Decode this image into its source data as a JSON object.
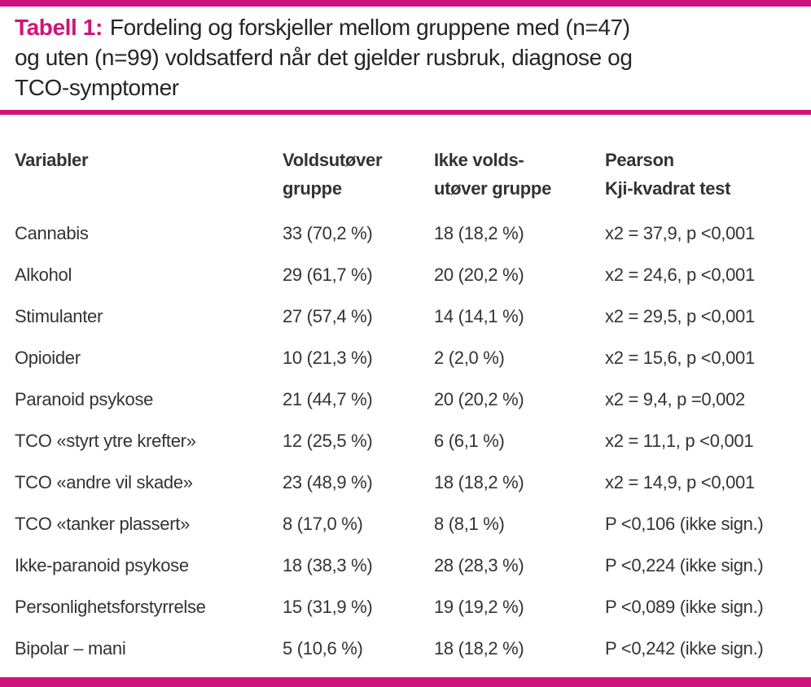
{
  "colors": {
    "accent": "#d0127c",
    "text": "#333333"
  },
  "caption": {
    "label": "Tabell 1:",
    "line1": "Fordeling og forskjeller mellom gruppene med (n=47)",
    "line2": "og uten (n=99) voldsatferd når det gjelder rusbruk, diagnose og",
    "line3": "TCO-symptomer"
  },
  "table": {
    "headers": [
      {
        "line1": "Variabler",
        "line2": ""
      },
      {
        "line1": "Voldsutøver",
        "line2": "gruppe"
      },
      {
        "line1": "Ikke volds-",
        "line2": "utøver gruppe"
      },
      {
        "line1": "Pearson",
        "line2": "Kji-kvadrat test"
      }
    ],
    "rows": [
      {
        "variable": "Cannabis",
        "volds": "33 (70,2 %)",
        "ikke": "18 (18,2 %)",
        "test": "x2 = 37,9, p <0,001"
      },
      {
        "variable": "Alkohol",
        "volds": "29 (61,7 %)",
        "ikke": "20 (20,2 %)",
        "test": "x2 = 24,6, p <0,001"
      },
      {
        "variable": "Stimulanter",
        "volds": "27 (57,4 %)",
        "ikke": "14 (14,1 %)",
        "test": "x2 = 29,5, p <0,001"
      },
      {
        "variable": "Opioider",
        "volds": "10 (21,3 %)",
        "ikke": "2 (2,0 %)",
        "test": "x2 = 15,6, p <0,001"
      },
      {
        "variable": "Paranoid psykose",
        "volds": "21 (44,7 %)",
        "ikke": "20 (20,2 %)",
        "test": "x2 = 9,4, p =0,002"
      },
      {
        "variable": "TCO «styrt ytre krefter»",
        "volds": "12 (25,5 %)",
        "ikke": "6 (6,1 %)",
        "test": "x2 = 11,1, p <0,001"
      },
      {
        "variable": "TCO «andre vil skade»",
        "volds": "23 (48,9 %)",
        "ikke": "18 (18,2 %)",
        "test": "x2 = 14,9, p <0,001"
      },
      {
        "variable": "TCO «tanker plassert»",
        "volds": "8 (17,0 %)",
        "ikke": "8 (8,1 %)",
        "test": "P <0,106 (ikke sign.)"
      },
      {
        "variable": "Ikke-paranoid psykose",
        "volds": "18 (38,3 %)",
        "ikke": "28 (28,3 %)",
        "test": "P <0,224 (ikke sign.)"
      },
      {
        "variable": "Personlighetsforstyrrelse",
        "volds": "15 (31,9 %)",
        "ikke": "19 (19,2 %)",
        "test": "P <0,089 (ikke sign.)"
      },
      {
        "variable": "Bipolar – mani",
        "volds": "5 (10,6 %)",
        "ikke": "18 (18,2 %)",
        "test": "P <0,242 (ikke sign.)"
      }
    ]
  }
}
